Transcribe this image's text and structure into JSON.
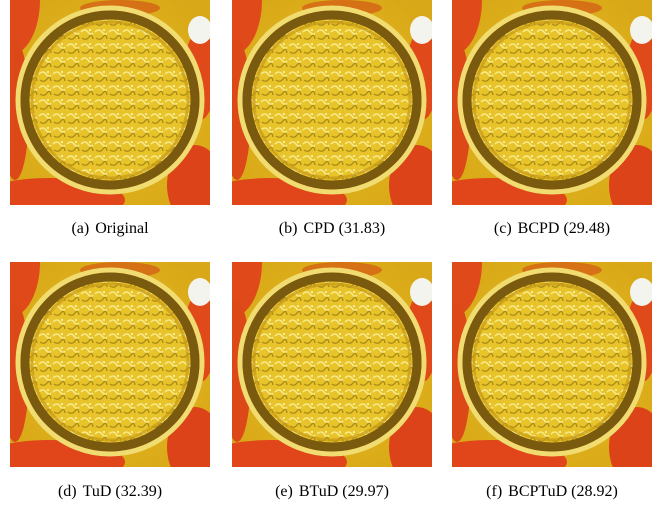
{
  "panels": [
    {
      "label": "(a)",
      "caption": "Original"
    },
    {
      "label": "(b)",
      "caption": "CPD (31.83)"
    },
    {
      "label": "(c)",
      "caption": "BCPD (29.48)"
    },
    {
      "label": "(d)",
      "caption": "TuD (32.39)"
    },
    {
      "label": "(e)",
      "caption": "BTuD (29.97)"
    },
    {
      "label": "(f)",
      "caption": "BCPTuD (28.92)"
    }
  ]
}
